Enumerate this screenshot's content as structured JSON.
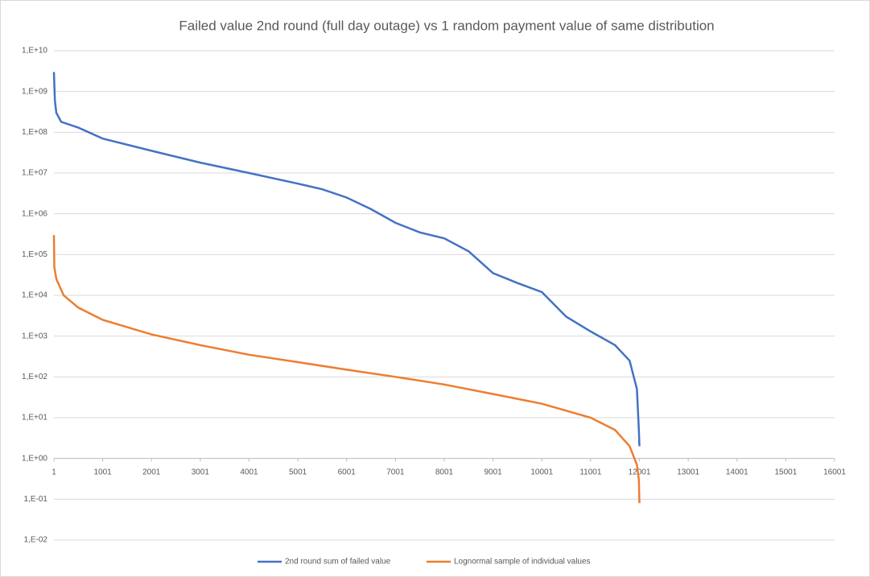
{
  "chart_data": {
    "type": "line",
    "title": "Failed value 2nd round (full day outage) vs 1 random payment value of same distribution",
    "log_y": true,
    "grid": true,
    "legend": "bottom",
    "xlim": [
      1,
      16001
    ],
    "xticks": [
      1,
      1001,
      2001,
      3001,
      4001,
      5001,
      6001,
      7001,
      8001,
      9001,
      10001,
      11001,
      12001,
      13001,
      14001,
      15001,
      16001
    ],
    "ylim": [
      0.01,
      10000000000
    ],
    "yticks": [
      {
        "value": 0.01,
        "label": "1,E-02"
      },
      {
        "value": 0.1,
        "label": "1,E-01"
      },
      {
        "value": 1,
        "label": "1,E+00"
      },
      {
        "value": 10,
        "label": "1,E+01"
      },
      {
        "value": 100,
        "label": "1,E+02"
      },
      {
        "value": 1000,
        "label": "1,E+03"
      },
      {
        "value": 10000,
        "label": "1,E+04"
      },
      {
        "value": 100000,
        "label": "1,E+05"
      },
      {
        "value": 1000000,
        "label": "1,E+06"
      },
      {
        "value": 10000000,
        "label": "1,E+07"
      },
      {
        "value": 100000000,
        "label": "1,E+08"
      },
      {
        "value": 1000000000,
        "label": "1,E+09"
      },
      {
        "value": 10000000000,
        "label": "1,E+10"
      }
    ],
    "series": [
      {
        "name": "2nd round sum of failed value",
        "color": "#4472c4",
        "x": [
          1,
          20,
          50,
          150,
          500,
          1001,
          2001,
          3001,
          4001,
          5001,
          5500,
          6001,
          6500,
          7001,
          7501,
          8001,
          8501,
          9001,
          9501,
          10001,
          10500,
          11001,
          11501,
          11800,
          11950,
          11990,
          12001
        ],
        "values": [
          3000000000,
          600000000,
          300000000,
          180000000,
          130000000,
          70000000,
          35000000,
          18000000,
          10000000,
          5500000,
          4000000,
          2500000,
          1300000,
          600000,
          350000,
          250000,
          120000,
          35000,
          20000,
          12000,
          3000,
          1300,
          600,
          250,
          50,
          5,
          2
        ]
      },
      {
        "name": "Lognormal sample of individual values",
        "color": "#ed7d31",
        "x": [
          1,
          10,
          50,
          200,
          500,
          1001,
          2001,
          3001,
          4001,
          5001,
          6001,
          7001,
          8001,
          9001,
          10001,
          11001,
          11501,
          11800,
          11950,
          11990,
          12001
        ],
        "values": [
          300000,
          50000,
          25000,
          10000,
          5000,
          2500,
          1100,
          600,
          350,
          230,
          150,
          100,
          65,
          38,
          22,
          10,
          5,
          2,
          0.7,
          0.3,
          0.08
        ]
      }
    ]
  }
}
